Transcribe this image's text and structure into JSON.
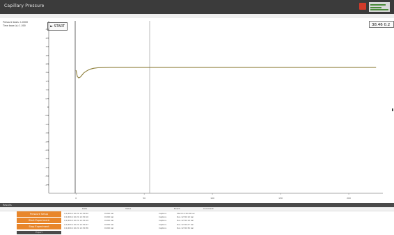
{
  "window": {
    "title": "Capillary Pressure"
  },
  "info": {
    "line1": "Pressure basis:   1.0000",
    "line2": "Time base (s):    1.000"
  },
  "toolbar": {
    "start_label": "► START"
  },
  "readout": {
    "value": "38.46   0.2"
  },
  "chart_data": {
    "type": "line",
    "x": [
      0,
      1,
      2,
      3,
      4,
      5,
      6,
      8,
      10,
      13,
      16,
      20,
      25,
      30,
      40,
      60,
      80,
      100,
      130,
      160,
      190,
      220
    ],
    "y": [
      2.05,
      1.7,
      1.62,
      1.66,
      1.74,
      1.84,
      1.92,
      2.02,
      2.1,
      2.16,
      2.19,
      2.2,
      2.21,
      2.21,
      2.21,
      2.21,
      2.21,
      2.21,
      2.21,
      2.21,
      2.21,
      2.21
    ],
    "xlim": [
      -20,
      225
    ],
    "ylim": [
      -4.8,
      4.8
    ],
    "yticks": [
      "4.5",
      "4.0",
      "3.5",
      "3.0",
      "2.5",
      "2.0",
      "1.5",
      "1.0",
      "0.5",
      "0",
      "-0.5",
      "-1.0",
      "-1.5",
      "-2.0",
      "-2.5",
      "-3.0",
      "-3.5",
      "-4.0",
      "-4.5"
    ],
    "xticks": [
      "0",
      "50",
      "100",
      "150",
      "200"
    ],
    "series_color": "#8c7d38",
    "grid": false
  },
  "panel": {
    "title": "Results",
    "columns": [
      "Date",
      "Value",
      "Event",
      "Comment"
    ],
    "buttons": [
      "Pressure Setup",
      "Start Experiment",
      "Stop Experiment",
      "Export"
    ],
    "rows": [
      [
        "1/1/2016 10:21  12:30:02",
        "0.000 bar",
        "Capture",
        "Start 12:30:02 bar"
      ],
      [
        "1/1/2016 10:21  12:30:10",
        "0.000 bar",
        "Capture",
        "Run 12:30:10 bar"
      ],
      [
        "1/1/2016 10:21  12:30:19",
        "0.000 bar",
        "Capture",
        "Run 12:30:19 bar"
      ],
      [
        "1/1/2016 10:21  12:30:27",
        "0.000 bar",
        "Capture",
        "Run 12:30:27 bar"
      ],
      [
        "1/1/2016 10:21  12:30:36",
        "0.000 bar",
        "Capture",
        "Run 12:30:36 bar"
      ]
    ]
  }
}
